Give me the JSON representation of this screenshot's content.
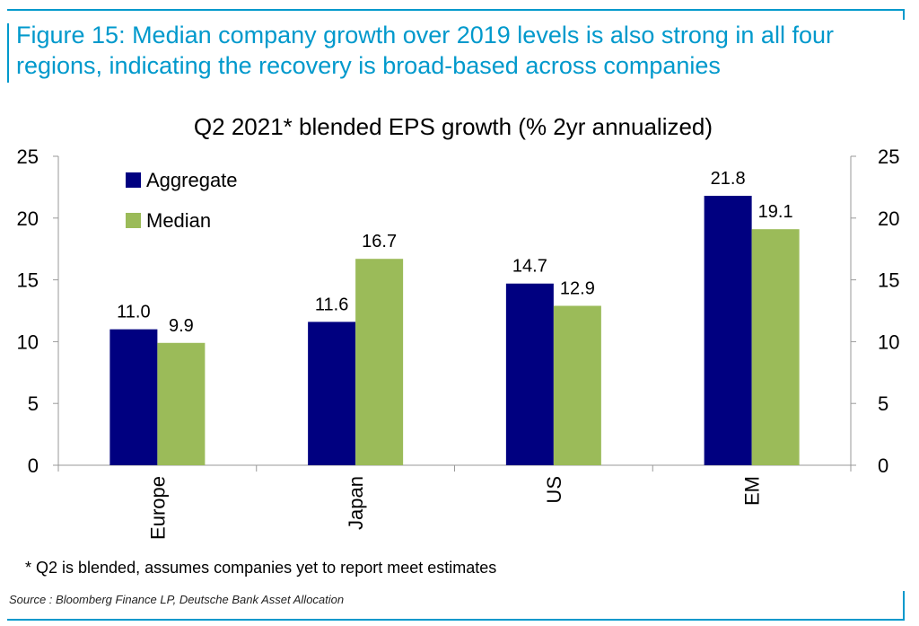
{
  "figure_title": "Figure 15: Median company growth over 2019 levels is also strong in all four regions, indicating the recovery is broad-based across companies",
  "footnote": "* Q2 is blended, assumes companies yet to report meet estimates",
  "source": "Source : Bloomberg Finance LP, Deutsche Bank Asset Allocation",
  "colors": {
    "aggregate": "#000080",
    "median": "#9bbb59",
    "frame": "#0099cc"
  },
  "chart_data": {
    "type": "bar",
    "title": "Q2 2021* blended EPS growth  (% 2yr annualized)",
    "categories": [
      "Europe",
      "Japan",
      "US",
      "EM"
    ],
    "series": [
      {
        "name": "Aggregate",
        "values": [
          11.0,
          11.6,
          14.7,
          21.8
        ]
      },
      {
        "name": "Median",
        "values": [
          9.9,
          16.7,
          12.9,
          19.1
        ]
      }
    ],
    "ylim": [
      0,
      25
    ],
    "yticks": [
      0,
      5,
      10,
      15,
      20,
      25
    ],
    "secondary_axis": true,
    "grid": false,
    "legend": "top-left",
    "data_labels": true
  }
}
